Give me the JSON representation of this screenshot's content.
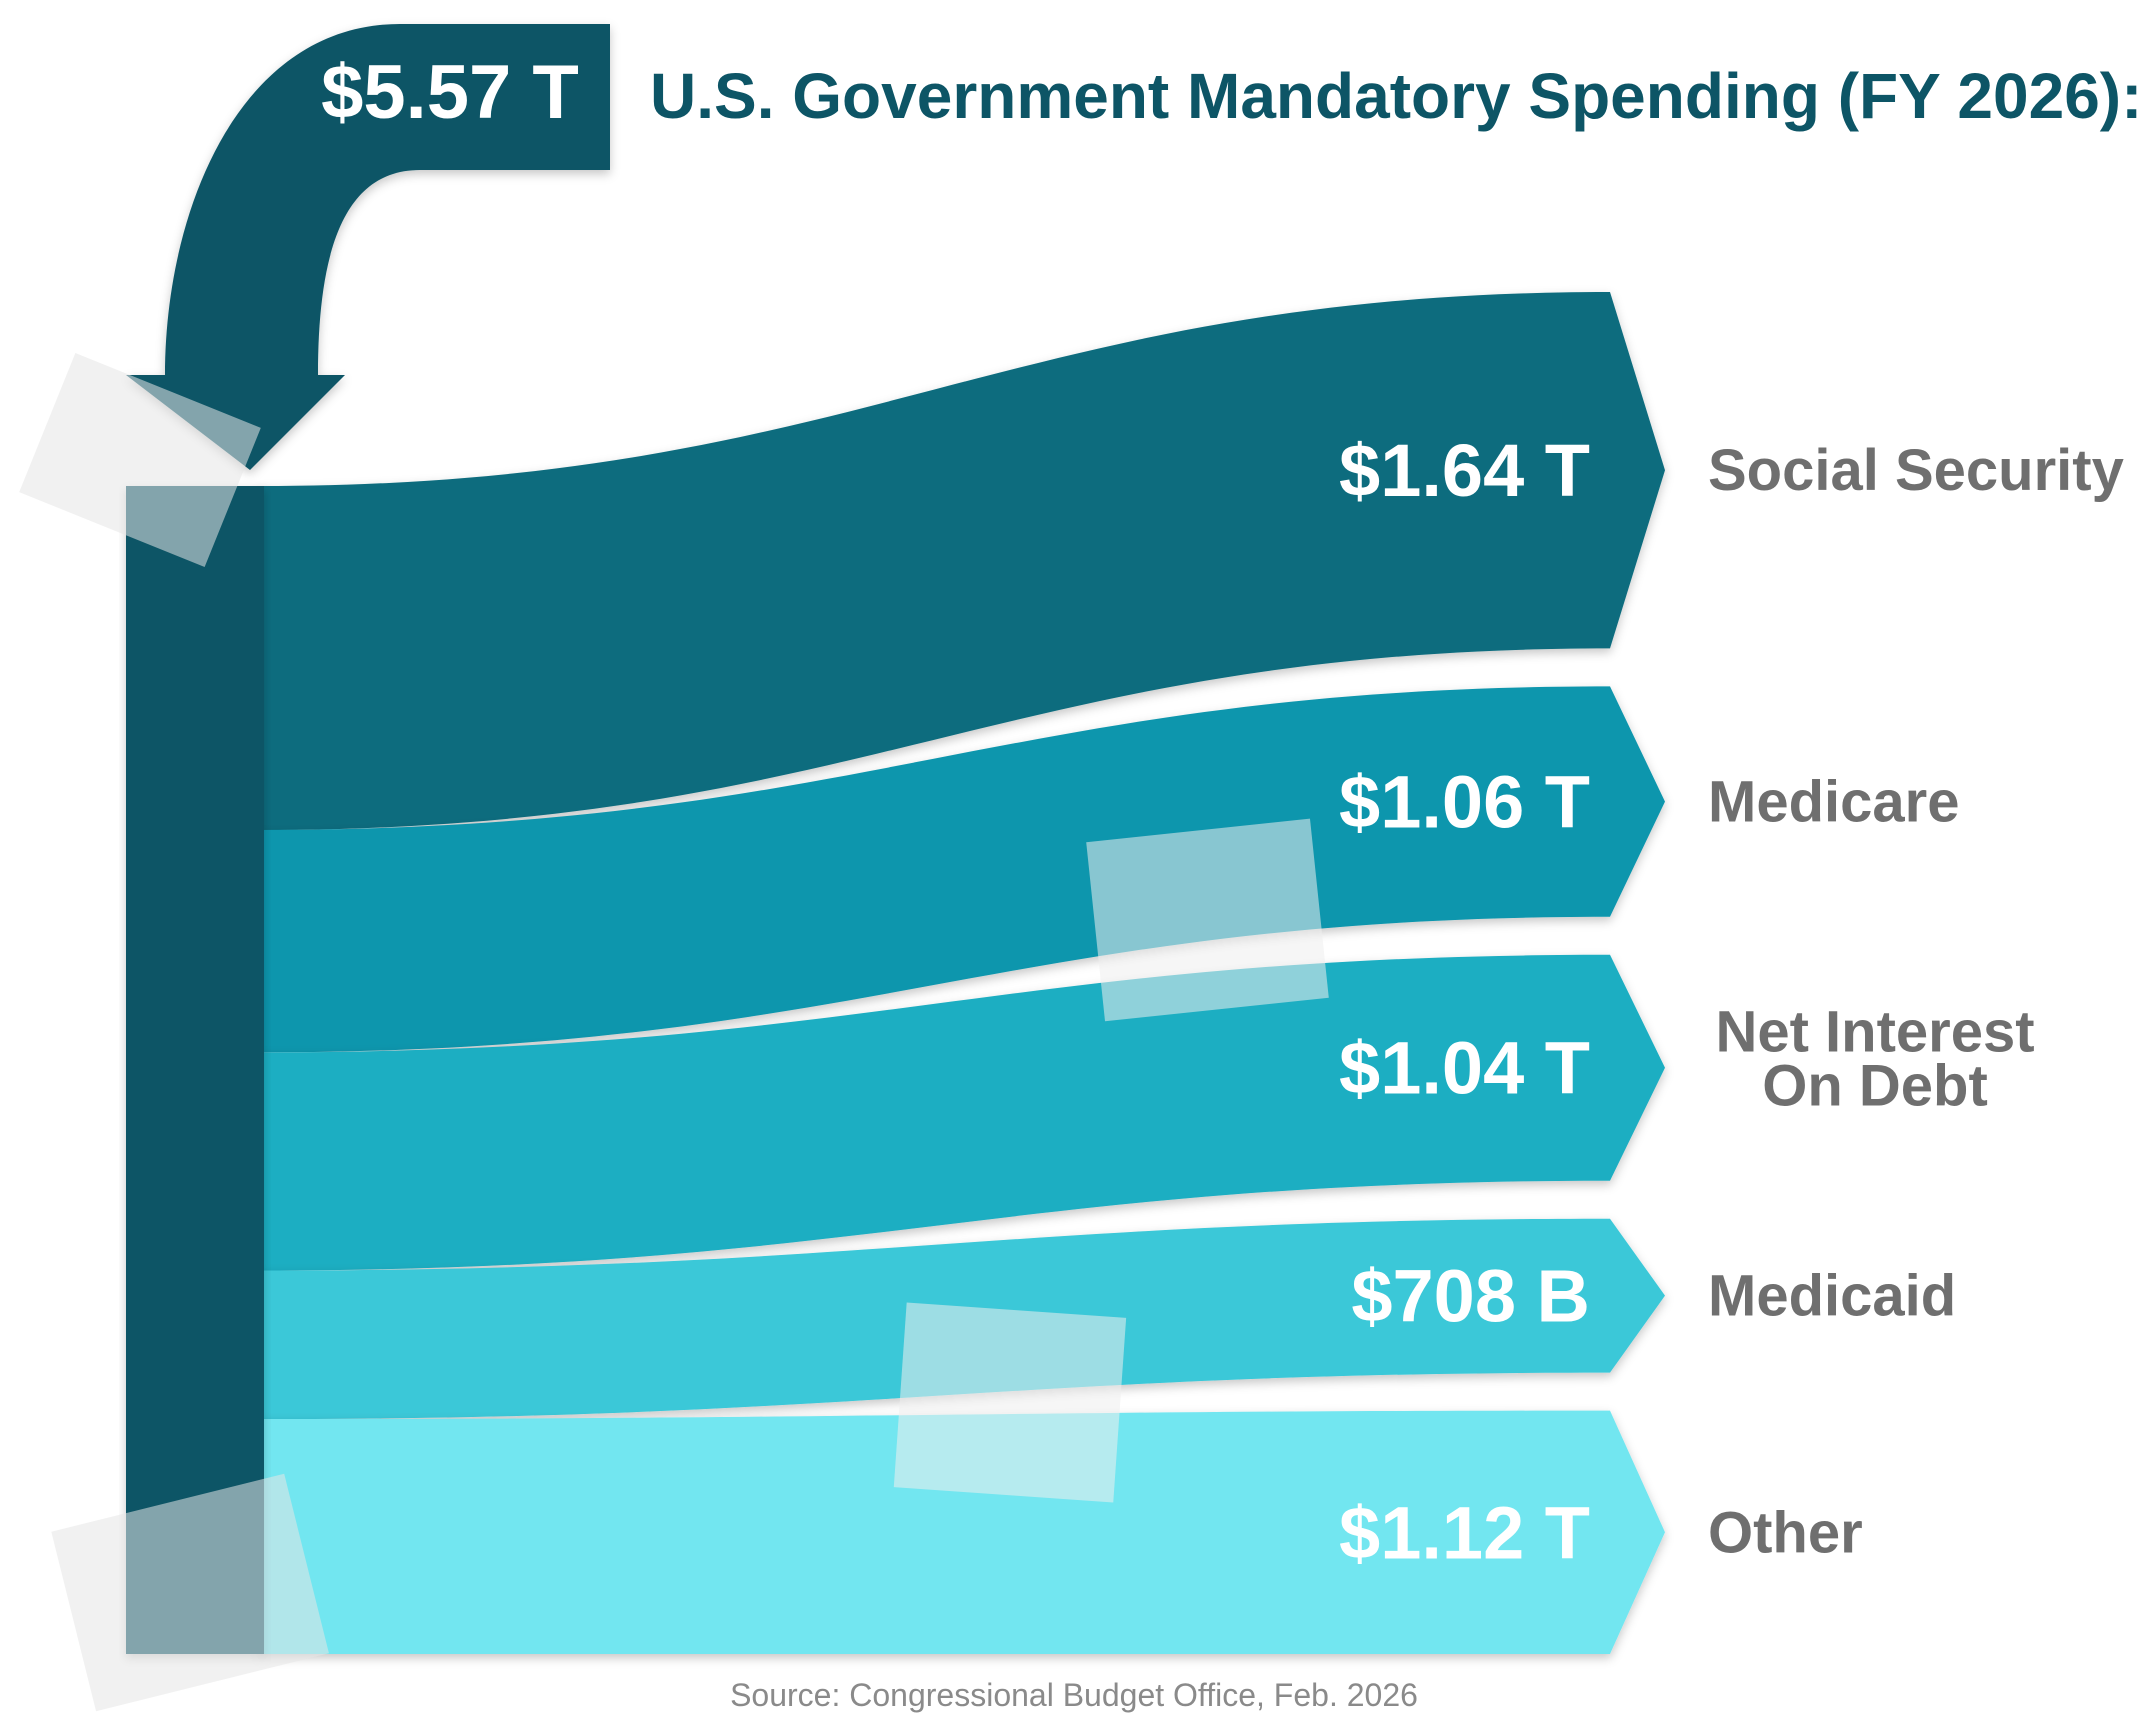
{
  "chart_data": {
    "type": "sankey",
    "title": "U.S. Government Mandatory Spending  (FY 2026):",
    "total": {
      "label": "$5.57 T",
      "value": 5.57,
      "unit": "T"
    },
    "flows": [
      {
        "category": "Social Security",
        "value_label": "$1.64 T",
        "value_trillions": 1.64,
        "color": "#0b6c7e"
      },
      {
        "category": "Medicare",
        "value_label": "$1.06 T",
        "value_trillions": 1.06,
        "color": "#0d96ad"
      },
      {
        "category": "Net Interest On Debt",
        "lines": [
          "Net Interest",
          "On Debt"
        ],
        "value_label": "$1.04 T",
        "value_trillions": 1.04,
        "color": "#1eaec2"
      },
      {
        "category": "Medicaid",
        "value_label": "$708 B",
        "value_trillions": 0.708,
        "color": "#3bc8d8"
      },
      {
        "category": "Other",
        "value_label": "$1.12 T",
        "value_trillions": 1.12,
        "color": "#72e6f0"
      }
    ],
    "source": "Source: Congressional Budget Office, Feb. 2026"
  },
  "colors": {
    "trunk": "#0b5566",
    "title": "#0d5566",
    "category_text": "#6f6f6f",
    "source_text": "#8a8a8a"
  }
}
